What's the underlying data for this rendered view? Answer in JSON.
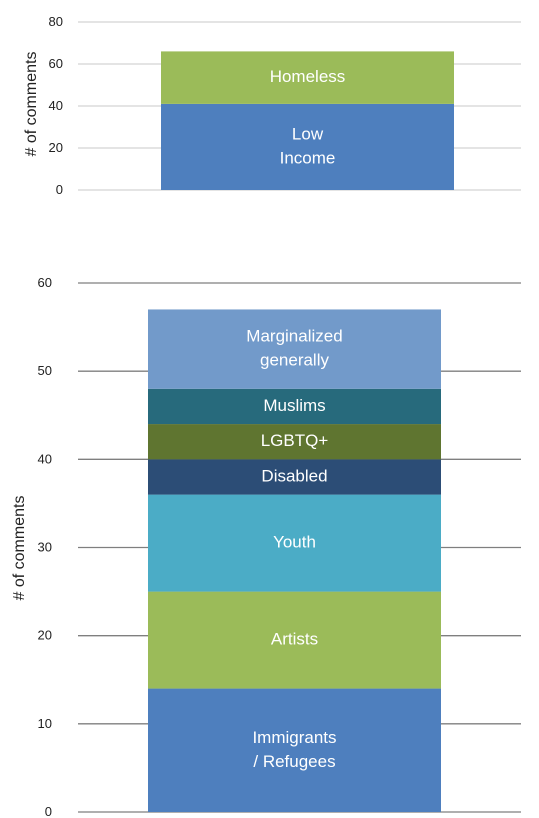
{
  "chart_data": [
    {
      "type": "bar",
      "stacked": true,
      "ylabel": "# of comments",
      "ylim": [
        0,
        80
      ],
      "yticks": [
        "0",
        "20",
        "40",
        "60",
        "80"
      ],
      "grid": true,
      "series": [
        {
          "name": "Low Income",
          "label_lines": [
            "Low",
            "Income"
          ],
          "value": 41,
          "color": "#4e7fbe"
        },
        {
          "name": "Homeless",
          "label_lines": [
            "Homeless"
          ],
          "value": 25,
          "color": "#9bbb59"
        }
      ]
    },
    {
      "type": "bar",
      "stacked": true,
      "ylabel": "# of comments",
      "ylim": [
        0,
        60
      ],
      "yticks": [
        "0",
        "10",
        "20",
        "30",
        "40",
        "50",
        "60"
      ],
      "grid": true,
      "series": [
        {
          "name": "Immigrants / Refugees",
          "label_lines": [
            "Immigrants",
            "/ Refugees"
          ],
          "value": 14,
          "color": "#4e7fbe"
        },
        {
          "name": "Artists",
          "label_lines": [
            "Artists"
          ],
          "value": 11,
          "color": "#9bbb59"
        },
        {
          "name": "Youth",
          "label_lines": [
            "Youth"
          ],
          "value": 11,
          "color": "#4bacc6"
        },
        {
          "name": "Disabled",
          "label_lines": [
            "Disabled"
          ],
          "value": 4,
          "color": "#2c4d76"
        },
        {
          "name": "LGBTQ+",
          "label_lines": [
            "LGBTQ+"
          ],
          "value": 4,
          "color": "#5f7530"
        },
        {
          "name": "Muslims",
          "label_lines": [
            "Muslims"
          ],
          "value": 4,
          "color": "#276a7c"
        },
        {
          "name": "Marginalized generally",
          "label_lines": [
            "Marginalized",
            "generally"
          ],
          "value": 9,
          "color": "#729aca"
        }
      ]
    }
  ]
}
